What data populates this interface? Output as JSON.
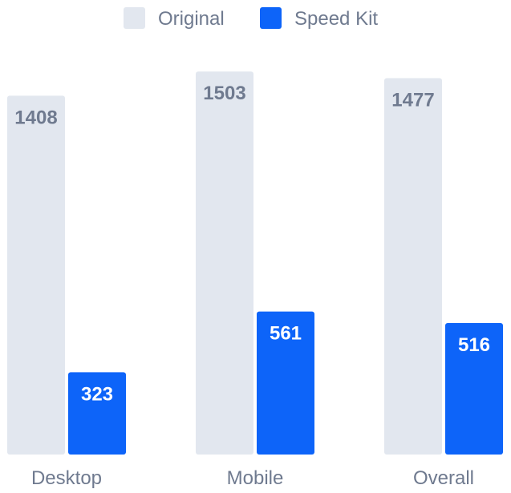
{
  "chart_data": {
    "type": "bar",
    "categories": [
      "Desktop",
      "Mobile",
      "Overall"
    ],
    "series": [
      {
        "name": "Original",
        "values": [
          1408,
          1503,
          1477
        ],
        "color": "#e2e7ef",
        "label_color": "#6f7a8f"
      },
      {
        "name": "Speed Kit",
        "values": [
          323,
          561,
          516
        ],
        "color": "#0d64f9",
        "label_color": "#ffffff"
      }
    ],
    "title": "",
    "xlabel": "",
    "ylabel": "",
    "ylim": [
      0,
      1620
    ],
    "grid": false,
    "legend": "top-center"
  }
}
